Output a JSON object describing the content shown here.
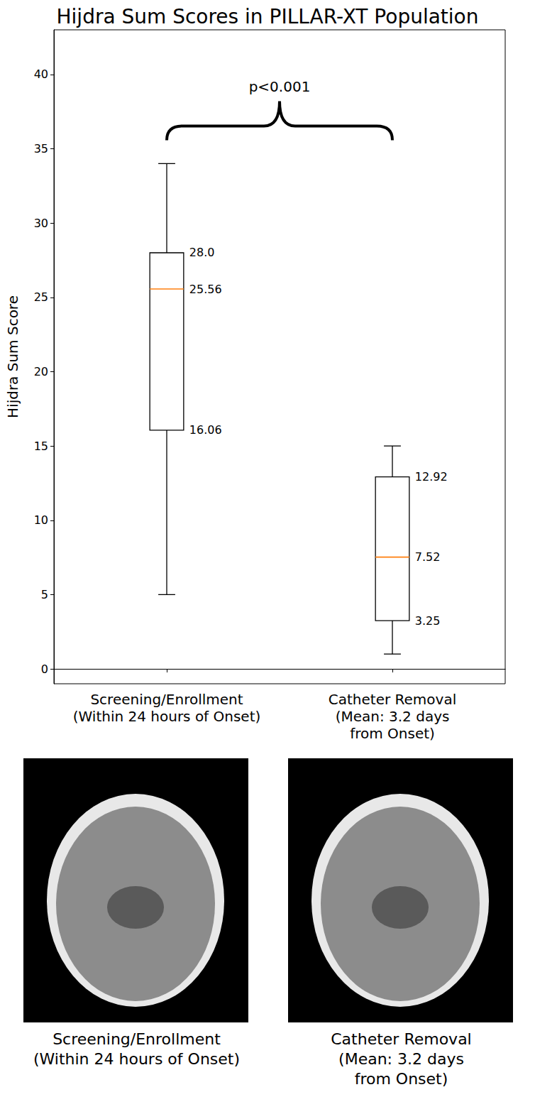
{
  "chart_data": {
    "type": "boxplot",
    "title": "Hijdra Sum Scores in PILLAR-XT Population",
    "y_label": "Hijdra Sum Score",
    "categories": [
      "Screening/Enrollment\n(Within 24 hours of Onset)",
      "Catheter Removal\n(Mean: 3.2 days\nfrom Onset)"
    ],
    "boxes": [
      {
        "min": 5,
        "q1": 16.06,
        "median": 25.56,
        "q3": 28.0,
        "max": 34,
        "labels": {
          "q1": "16.06",
          "median": "25.56",
          "q3": "28.0"
        }
      },
      {
        "min": 1,
        "q1": 3.25,
        "median": 7.52,
        "q3": 12.92,
        "max": 15,
        "labels": {
          "q1": "3.25",
          "median": "7.52",
          "q3": "12.92"
        }
      }
    ],
    "color": "#000000",
    "median_color": "#ff7f0e",
    "annotation": {
      "text": "p<0.001",
      "between": [
        0,
        1
      ]
    },
    "ylim": [
      -1,
      43
    ],
    "yticks": [
      0,
      5,
      10,
      15,
      20,
      25,
      30,
      35,
      40
    ],
    "grid": false,
    "data_labels": true
  },
  "images": [
    {
      "caption": "Screening/Enrollment\n(Within 24 hours of Onset)"
    },
    {
      "caption": "Catheter Removal\n(Mean: 3.2 days\nfrom Onset)"
    }
  ]
}
